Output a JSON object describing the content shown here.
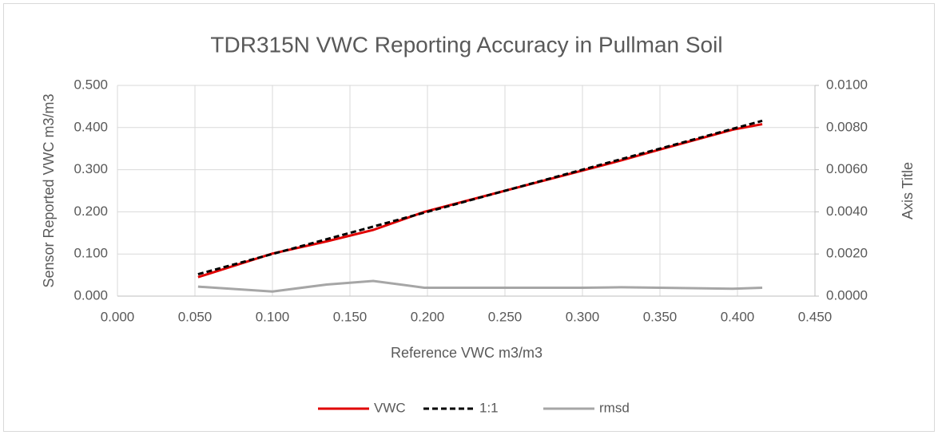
{
  "chart_data": {
    "type": "line",
    "title": "TDR315N VWC Reporting Accuracy in Pullman Soil",
    "x_label": "Reference VWC m3/m3",
    "y_label": "Sensor Reported VWC m3/m3",
    "y2_label": "Axis Title",
    "x": [
      0.052,
      0.1,
      0.135,
      0.165,
      0.198,
      0.25,
      0.3,
      0.325,
      0.35,
      0.397,
      0.416
    ],
    "series": [
      {
        "name": "VWC",
        "color": "#e00000",
        "style": "solid",
        "values": [
          0.045,
          0.101,
          0.13,
          0.157,
          0.2,
          0.25,
          0.298,
          0.322,
          0.348,
          0.395,
          0.408
        ]
      },
      {
        "name": "1:1",
        "color": "#000000",
        "style": "dashed",
        "values": [
          0.052,
          0.1,
          0.135,
          0.165,
          0.198,
          0.25,
          0.3,
          0.325,
          0.35,
          0.397,
          0.416
        ]
      },
      {
        "name": "rmsd",
        "color": "#a6a6a6",
        "style": "solid",
        "axis": "y2",
        "values": [
          0.00045,
          0.00022,
          0.00055,
          0.00072,
          0.0004,
          0.0004,
          0.0004,
          0.00042,
          0.0004,
          0.00035,
          0.0004
        ]
      }
    ],
    "xlim": [
      0,
      0.45
    ],
    "xticks": [
      {
        "value": 0,
        "label": "0.000"
      },
      {
        "value": 0.05,
        "label": "0.050"
      },
      {
        "value": 0.1,
        "label": "0.100"
      },
      {
        "value": 0.15,
        "label": "0.150"
      },
      {
        "value": 0.2,
        "label": "0.200"
      },
      {
        "value": 0.25,
        "label": "0.250"
      },
      {
        "value": 0.3,
        "label": "0.300"
      },
      {
        "value": 0.35,
        "label": "0.350"
      },
      {
        "value": 0.4,
        "label": "0.400"
      },
      {
        "value": 0.45,
        "label": "0.450"
      }
    ],
    "ylim": [
      0,
      0.5
    ],
    "yticks": [
      {
        "value": 0,
        "label": "0.000"
      },
      {
        "value": 0.1,
        "label": "0.100"
      },
      {
        "value": 0.2,
        "label": "0.200"
      },
      {
        "value": 0.3,
        "label": "0.300"
      },
      {
        "value": 0.4,
        "label": "0.400"
      },
      {
        "value": 0.5,
        "label": "0.500"
      }
    ],
    "y2lim": [
      0,
      0.01
    ],
    "y2ticks": [
      {
        "value": 0,
        "label": "0.0000"
      },
      {
        "value": 0.002,
        "label": "0.0020"
      },
      {
        "value": 0.004,
        "label": "0.0040"
      },
      {
        "value": 0.006,
        "label": "0.0060"
      },
      {
        "value": 0.008,
        "label": "0.0080"
      },
      {
        "value": 0.01,
        "label": "0.0100"
      }
    ],
    "grid": true,
    "legend": "bottom"
  }
}
